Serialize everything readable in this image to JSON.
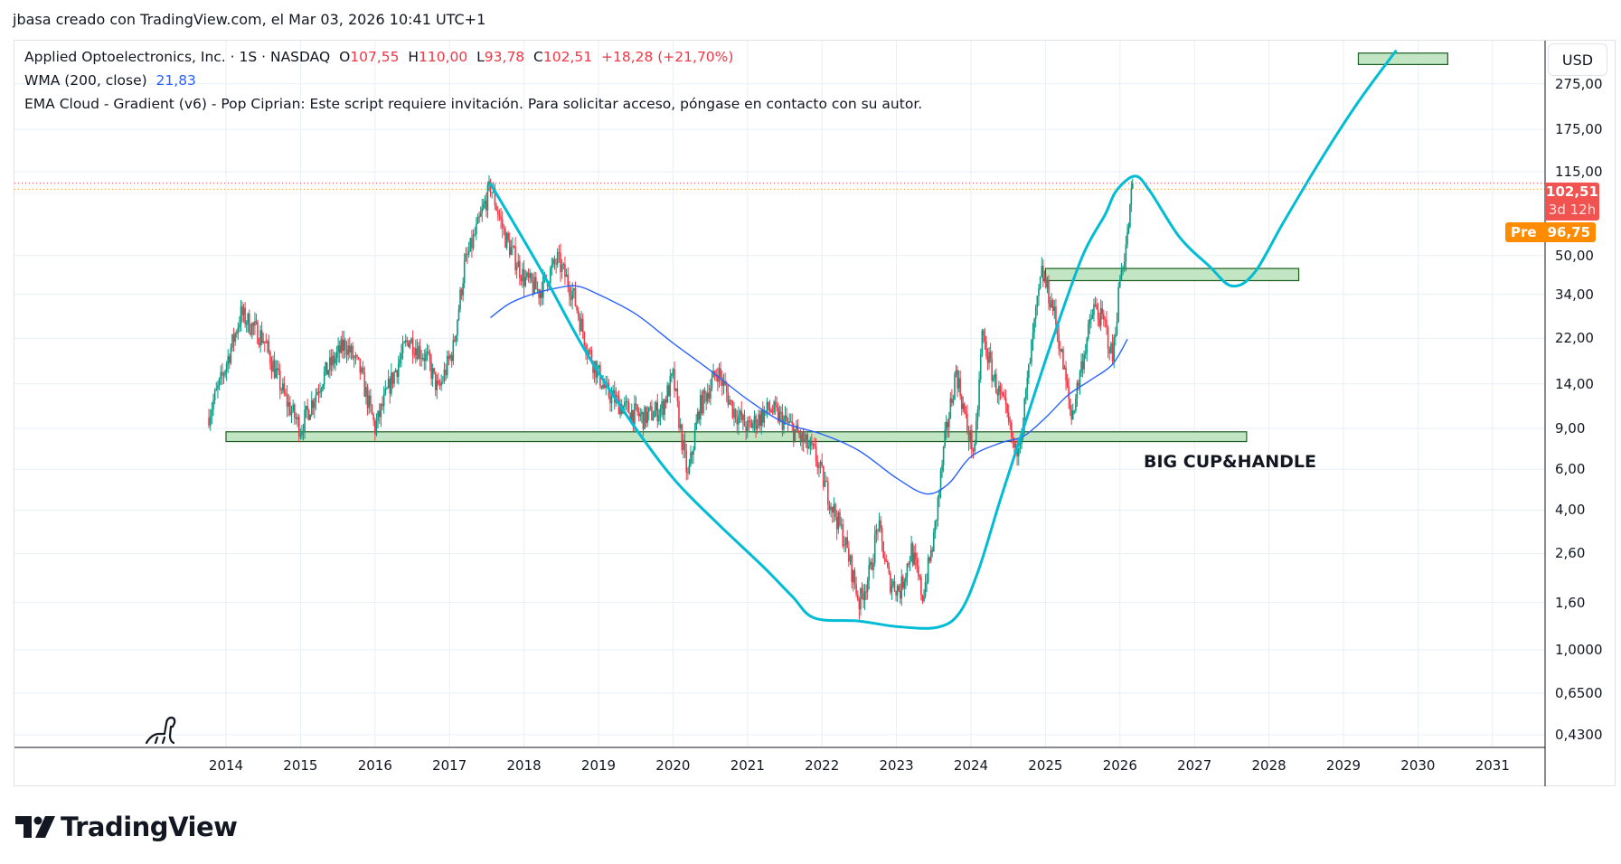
{
  "credit": "jbasa creado con TradingView.com, el Mar 03, 2026 10:41 UTC+1",
  "legend": {
    "symbol": "Applied Optoelectronics, Inc. · 1S · NASDAQ",
    "o_label": "O",
    "o": "107,55",
    "h_label": "H",
    "h": "110,00",
    "l_label": "L",
    "l": "93,78",
    "c_label": "C",
    "c": "102,51",
    "change": "+18,28 (+21,70%)",
    "wma_label": "WMA (200, close)",
    "wma_value": "21,83",
    "ema_cloud": "EMA Cloud - Gradient (v6) - Pop Ciprian: Este script requiere invitación. Para solicitar acceso, póngase en contacto con su autor."
  },
  "currency": "USD",
  "last_price": {
    "value": "102,51",
    "countdown": "3d 12h"
  },
  "premarket": {
    "label": "Pre",
    "value": "96,75"
  },
  "annotation_text": "BIG CUP&HANDLE",
  "brand": "TradingView",
  "colors": {
    "up": "#089981",
    "down": "#f23645",
    "wma": "#2962ff",
    "cup": "#00bcd4",
    "zone_fill": "#c2e5c3",
    "zone_border": "#1b5e20",
    "last": "#f05350",
    "pre": "#ff8c00"
  },
  "chart_data": {
    "type": "candlestick",
    "scale": "log",
    "grid": true,
    "price_ticks": [
      "0,4300",
      "0,6500",
      "1,0000",
      "1,60",
      "2,60",
      "4,00",
      "6,00",
      "9,00",
      "14,00",
      "22,00",
      "34,00",
      "50,00",
      "115,00",
      "175,00",
      "275,00"
    ],
    "price_tick_values": [
      0.43,
      0.65,
      1,
      1.6,
      2.6,
      4,
      6,
      9,
      14,
      22,
      34,
      50,
      115,
      175,
      275
    ],
    "x_ticks": [
      "2014",
      "2015",
      "2016",
      "2017",
      "2018",
      "2019",
      "2020",
      "2021",
      "2022",
      "2023",
      "2024",
      "2025",
      "2026",
      "2027",
      "2028",
      "2029",
      "2030",
      "2031"
    ],
    "price_path": [
      [
        2013.75,
        10
      ],
      [
        2013.95,
        15
      ],
      [
        2014.2,
        28
      ],
      [
        2014.5,
        22
      ],
      [
        2014.8,
        12
      ],
      [
        2015.0,
        9
      ],
      [
        2015.3,
        15
      ],
      [
        2015.6,
        21
      ],
      [
        2015.8,
        16
      ],
      [
        2016.0,
        9
      ],
      [
        2016.2,
        14
      ],
      [
        2016.45,
        22
      ],
      [
        2016.7,
        18
      ],
      [
        2016.85,
        13
      ],
      [
        2017.05,
        20
      ],
      [
        2017.2,
        45
      ],
      [
        2017.4,
        70
      ],
      [
        2017.55,
        100
      ],
      [
        2017.75,
        60
      ],
      [
        2018.0,
        40
      ],
      [
        2018.2,
        35
      ],
      [
        2018.45,
        48
      ],
      [
        2018.65,
        35
      ],
      [
        2018.85,
        20
      ],
      [
        2019.1,
        13
      ],
      [
        2019.35,
        11
      ],
      [
        2019.6,
        10
      ],
      [
        2019.85,
        11
      ],
      [
        2020.0,
        15
      ],
      [
        2020.12,
        8
      ],
      [
        2020.2,
        5.5
      ],
      [
        2020.35,
        11
      ],
      [
        2020.6,
        16
      ],
      [
        2020.8,
        11
      ],
      [
        2021.0,
        9
      ],
      [
        2021.3,
        11
      ],
      [
        2021.6,
        9
      ],
      [
        2021.9,
        7
      ],
      [
        2022.1,
        4.5
      ],
      [
        2022.3,
        3
      ],
      [
        2022.5,
        1.6
      ],
      [
        2022.65,
        2.2
      ],
      [
        2022.75,
        3.5
      ],
      [
        2022.9,
        2
      ],
      [
        2023.05,
        1.8
      ],
      [
        2023.2,
        2.7
      ],
      [
        2023.35,
        1.7
      ],
      [
        2023.5,
        3
      ],
      [
        2023.65,
        8
      ],
      [
        2023.8,
        16
      ],
      [
        2023.95,
        9
      ],
      [
        2024.05,
        7
      ],
      [
        2024.15,
        23
      ],
      [
        2024.3,
        15
      ],
      [
        2024.45,
        11
      ],
      [
        2024.6,
        7
      ],
      [
        2024.7,
        10
      ],
      [
        2024.85,
        25
      ],
      [
        2024.95,
        42
      ],
      [
        2025.1,
        30
      ],
      [
        2025.2,
        20
      ],
      [
        2025.35,
        10
      ],
      [
        2025.5,
        18
      ],
      [
        2025.65,
        30
      ],
      [
        2025.8,
        25
      ],
      [
        2025.9,
        18
      ],
      [
        2026.0,
        40
      ],
      [
        2026.1,
        60
      ],
      [
        2026.17,
        102.51
      ]
    ],
    "wma_200": [
      [
        2017.55,
        27
      ],
      [
        2017.8,
        31
      ],
      [
        2018.1,
        34
      ],
      [
        2018.4,
        36
      ],
      [
        2018.7,
        37
      ],
      [
        2019.0,
        34
      ],
      [
        2019.5,
        28
      ],
      [
        2020.0,
        21
      ],
      [
        2020.5,
        16
      ],
      [
        2021.0,
        12
      ],
      [
        2021.5,
        9.5
      ],
      [
        2022.0,
        8.5
      ],
      [
        2022.5,
        7.2
      ],
      [
        2023.0,
        5.5
      ],
      [
        2023.4,
        4.7
      ],
      [
        2023.7,
        5.2
      ],
      [
        2024.0,
        6.8
      ],
      [
        2024.4,
        7.8
      ],
      [
        2024.7,
        8.3
      ],
      [
        2025.0,
        10
      ],
      [
        2025.3,
        12.5
      ],
      [
        2025.6,
        14.5
      ],
      [
        2025.9,
        17
      ],
      [
        2026.1,
        21.83
      ]
    ],
    "drawings": {
      "cup_curve": [
        [
          2017.55,
          102
        ],
        [
          2018.2,
          45
        ],
        [
          2018.8,
          20
        ],
        [
          2019.4,
          10
        ],
        [
          2020.0,
          5.5
        ],
        [
          2020.6,
          3.5
        ],
        [
          2021.2,
          2.3
        ],
        [
          2021.6,
          1.7
        ],
        [
          2021.9,
          1.37
        ],
        [
          2022.5,
          1.33
        ],
        [
          2023.0,
          1.26
        ],
        [
          2023.55,
          1.25
        ],
        [
          2023.85,
          1.45
        ],
        [
          2024.1,
          2.2
        ],
        [
          2024.4,
          4.5
        ],
        [
          2024.75,
          10
        ],
        [
          2025.1,
          22
        ],
        [
          2025.5,
          50
        ],
        [
          2025.8,
          75
        ],
        [
          2025.95,
          95
        ],
        [
          2026.2,
          110
        ],
        [
          2026.4,
          95
        ],
        [
          2026.8,
          60
        ],
        [
          2027.2,
          45
        ],
        [
          2027.5,
          37
        ],
        [
          2027.8,
          42
        ],
        [
          2028.2,
          70
        ],
        [
          2028.7,
          130
        ],
        [
          2029.2,
          230
        ],
        [
          2029.7,
          380
        ]
      ],
      "zones": [
        {
          "name": "support-zone",
          "from": 2014.0,
          "to": 2027.7,
          "low": 7.9,
          "high": 8.7
        },
        {
          "name": "resistance-zone",
          "from": 2025.0,
          "to": 2028.4,
          "low": 39,
          "high": 44
        },
        {
          "name": "target-zone",
          "from": 2029.2,
          "to": 2030.4,
          "low": 333,
          "high": 373
        }
      ],
      "last_price_line": 102.51,
      "premarket_line": 96.75
    }
  }
}
